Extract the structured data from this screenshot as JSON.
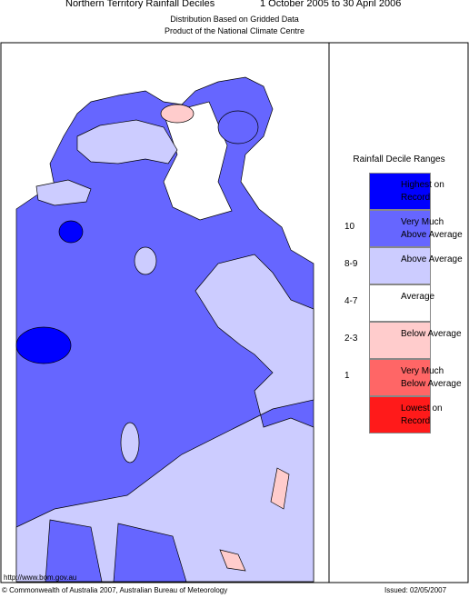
{
  "header": {
    "title": "Northern Territory Rainfall Deciles",
    "period": "1 October 2005 to 30 April 2006",
    "subtitle1": "Distribution Based on Gridded Data",
    "subtitle2": "Product of the National Climate Centre"
  },
  "legend": {
    "title": "Rainfall Decile Ranges",
    "items": [
      {
        "label": "Highest on Record",
        "color": "#0000ff"
      },
      {
        "decile": "10",
        "label": "Very Much Above Average",
        "color": "#6666ff"
      },
      {
        "decile": "8-9",
        "label": "Above Average",
        "color": "#ccccff"
      },
      {
        "decile": "4-7",
        "label": "Average",
        "color": "#ffffff"
      },
      {
        "decile": "2-3",
        "label": "Below Average",
        "color": "#ffcccc"
      },
      {
        "decile": "1",
        "label": "Very Much Below Average",
        "color": "#ff6666"
      },
      {
        "label": "Lowest on Record",
        "color": "#ff1a1a"
      }
    ]
  },
  "footer": {
    "url": "http://www.bom.gov.au",
    "copyright": "© Commonwealth of Australia 2007, Australian Bureau of Meteorology",
    "issued": "Issued: 02/05/2007"
  }
}
